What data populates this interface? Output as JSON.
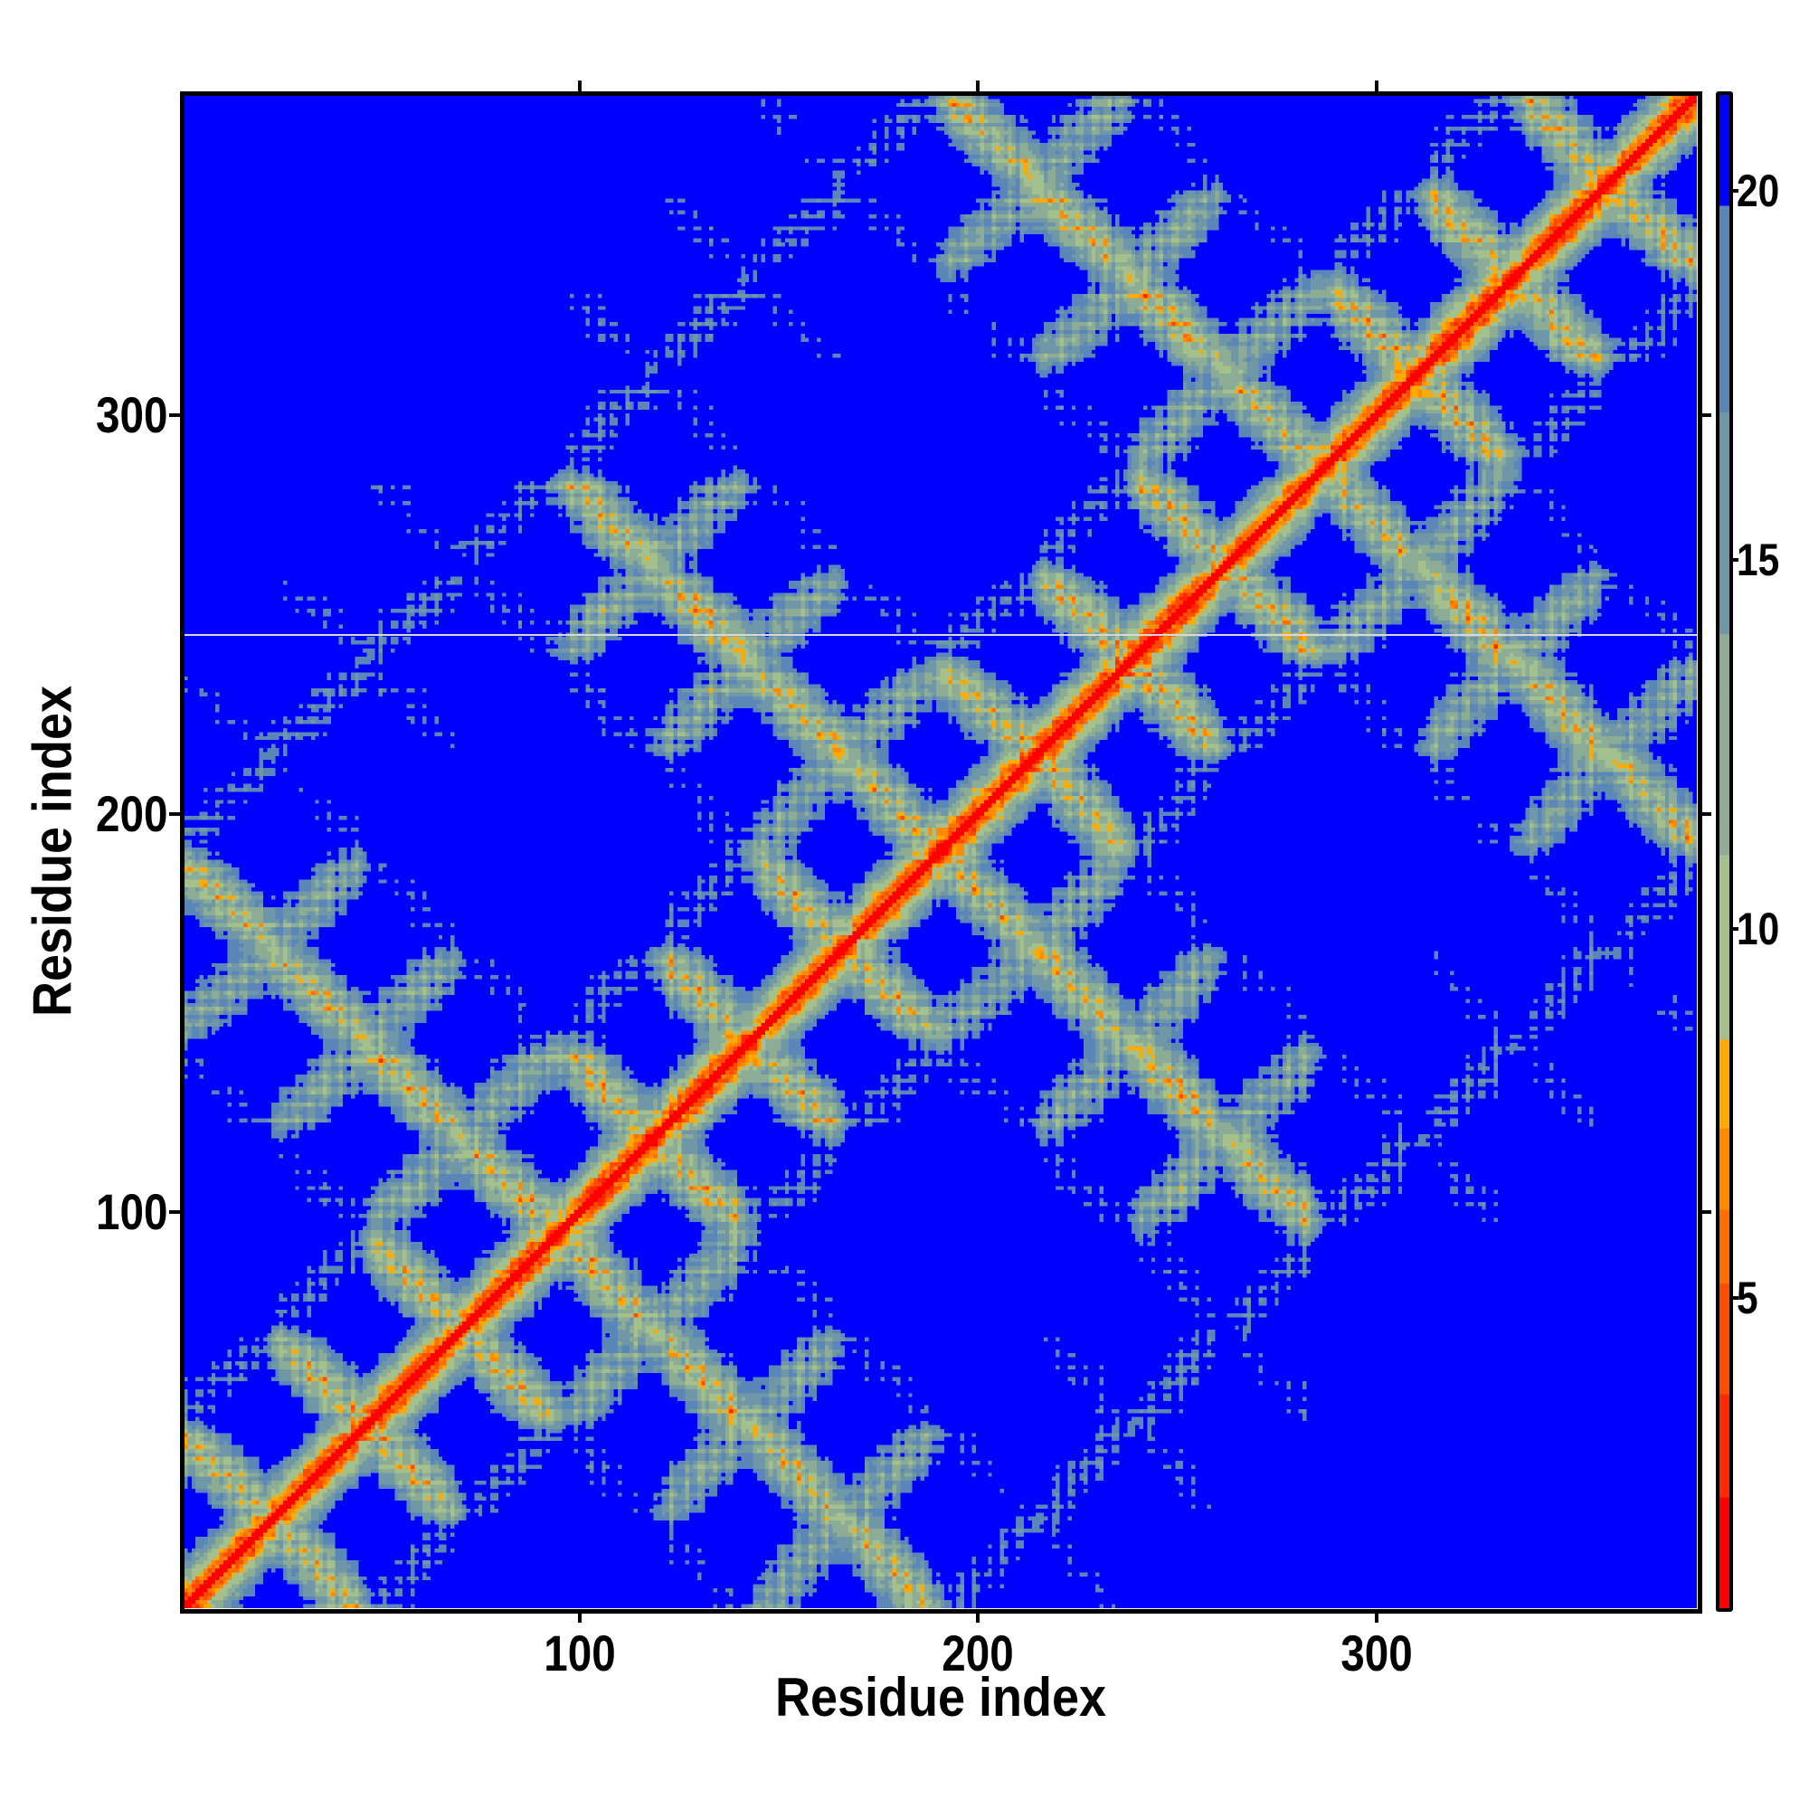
{
  "chart_data": {
    "type": "heatmap",
    "title": "",
    "xlabel": "Residue index",
    "ylabel": "Residue index",
    "xlim": [
      0.5,
      380.5
    ],
    "ylim": [
      0.5,
      380.5
    ],
    "n_residues": 380,
    "x_ticks": [
      "100",
      "200",
      "300"
    ],
    "x_tick_values": [
      100,
      200,
      300
    ],
    "y_ticks": [
      "100",
      "200",
      "300"
    ],
    "y_tick_values": [
      100,
      200,
      300
    ],
    "missing_rows": [
      245
    ],
    "colorbar": {
      "label": "",
      "range": [
        0.8,
        21.3
      ],
      "ticks": [
        "5",
        "10",
        "15",
        "20"
      ],
      "tick_values": [
        5,
        10,
        15,
        20
      ],
      "bins": [
        {
          "from": 0.8,
          "to": 2.3,
          "color": "#ff0000"
        },
        {
          "from": 2.3,
          "to": 3.7,
          "color": "#ff2800"
        },
        {
          "from": 3.7,
          "to": 5.2,
          "color": "#ff4c00"
        },
        {
          "from": 5.2,
          "to": 6.2,
          "color": "#ff6e00"
        },
        {
          "from": 6.2,
          "to": 7.3,
          "color": "#ff8c00"
        },
        {
          "from": 7.3,
          "to": 8.5,
          "color": "#ffaa00"
        },
        {
          "from": 8.5,
          "to": 11,
          "color": "#a4c08c"
        },
        {
          "from": 11,
          "to": 14,
          "color": "#8cac96"
        },
        {
          "from": 14,
          "to": 17,
          "color": "#6f97a8"
        },
        {
          "from": 17,
          "to": 19.8,
          "color": "#5b87b8"
        },
        {
          "from": 19.8,
          "to": 21.3,
          "color": "#0000ff"
        }
      ]
    },
    "description_of_values": "pairwise residue distance map; diagonal near 0 (red), helix crossing patterns, distances above ~20 shown blue"
  }
}
